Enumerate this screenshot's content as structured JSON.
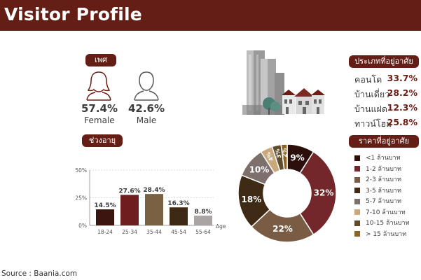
{
  "title": "Visitor Profile",
  "gender": {
    "label": "เพศ",
    "female": {
      "pct": "57.4%",
      "label": "Female",
      "icon": "female-user-icon"
    },
    "male": {
      "pct": "42.6%",
      "label": "Male",
      "icon": "male-user-icon"
    }
  },
  "residence_type": {
    "label": "ประเภทที่อยู่อาศัย",
    "illustration": "buildings-and-houses-illustration",
    "items": [
      {
        "name": "คอนโด",
        "value": "33.7%"
      },
      {
        "name": "บ้านเดี่ยว",
        "value": "28.2%"
      },
      {
        "name": "บ้านแฝด",
        "value": "12.3%"
      },
      {
        "name": "ทาวน์โฮม",
        "value": "25.8%"
      }
    ]
  },
  "colors": {
    "brand": "#641e16",
    "bars": [
      "#3c1410",
      "#6e1e1e",
      "#7b6143",
      "#3d2914",
      "#aaa4a4"
    ]
  },
  "chart_data": [
    {
      "type": "bar",
      "title": "ช่วงอายุ",
      "categories": [
        "18-24",
        "25-34",
        "35-44",
        "45-54",
        "55-64"
      ],
      "values": [
        14.5,
        27.6,
        28.4,
        16.3,
        8.8
      ],
      "value_labels": [
        "14.5%",
        "27.6%",
        "28.4%",
        "16.3%",
        "8.8%"
      ],
      "xlabel": "Age",
      "ylabel": "",
      "ylim": [
        0,
        50
      ],
      "yticks": [
        "0%",
        "25%",
        "50%"
      ],
      "grid": true
    },
    {
      "type": "pie",
      "title": "ราคาที่อยู่อาศัย",
      "donut": true,
      "legend_position": "right",
      "categories": [
        "<1 ล้านบาท",
        "1-2 ล้านบาท",
        "2-3 ล้านบาท",
        "3-5 ล้านบาท",
        "5-7 ล้านบาท",
        "7-10 ล้านบาท",
        "10-15 ล้านบาท",
        "> 15 ล้านบาท"
      ],
      "values": [
        9,
        32,
        22,
        18,
        10,
        4,
        3,
        2
      ],
      "value_labels": [
        "9%",
        "32%",
        "22%",
        "18%",
        "10%",
        "4%",
        "3%",
        "2%"
      ],
      "colors": [
        "#2c0f0a",
        "#74272a",
        "#7a5c44",
        "#3f2a16",
        "#7d706c",
        "#c9a97c",
        "#5e4c2c",
        "#8a6424"
      ]
    }
  ],
  "source": "Source : Baania.com"
}
